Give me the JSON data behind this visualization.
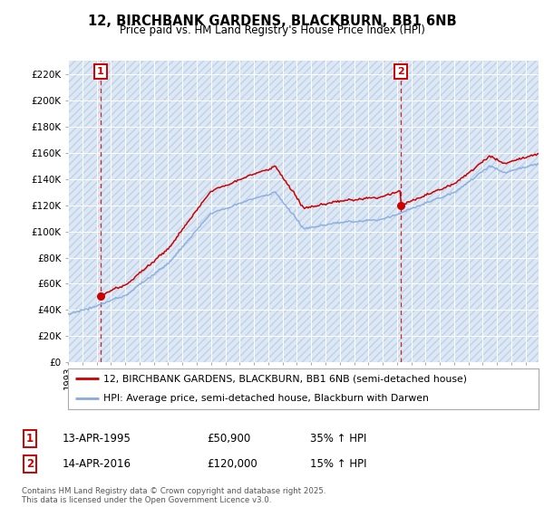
{
  "title": "12, BIRCHBANK GARDENS, BLACKBURN, BB1 6NB",
  "subtitle": "Price paid vs. HM Land Registry's House Price Index (HPI)",
  "legend_line1": "12, BIRCHBANK GARDENS, BLACKBURN, BB1 6NB (semi-detached house)",
  "legend_line2": "HPI: Average price, semi-detached house, Blackburn with Darwen",
  "footer": "Contains HM Land Registry data © Crown copyright and database right 2025.\nThis data is licensed under the Open Government Licence v3.0.",
  "sale1_date": "13-APR-1995",
  "sale1_price": "£50,900",
  "sale1_hpi": "35% ↑ HPI",
  "sale2_date": "14-APR-2016",
  "sale2_price": "£120,000",
  "sale2_hpi": "15% ↑ HPI",
  "property_color": "#cc0000",
  "hpi_color": "#88aadd",
  "grid_color": "#cccccc",
  "sale1_x": 1995.28,
  "sale2_x": 2016.28,
  "sale1_y": 50900,
  "sale2_y": 120000,
  "ylim": [
    0,
    230000
  ],
  "xlim": [
    1993.0,
    2025.9
  ]
}
